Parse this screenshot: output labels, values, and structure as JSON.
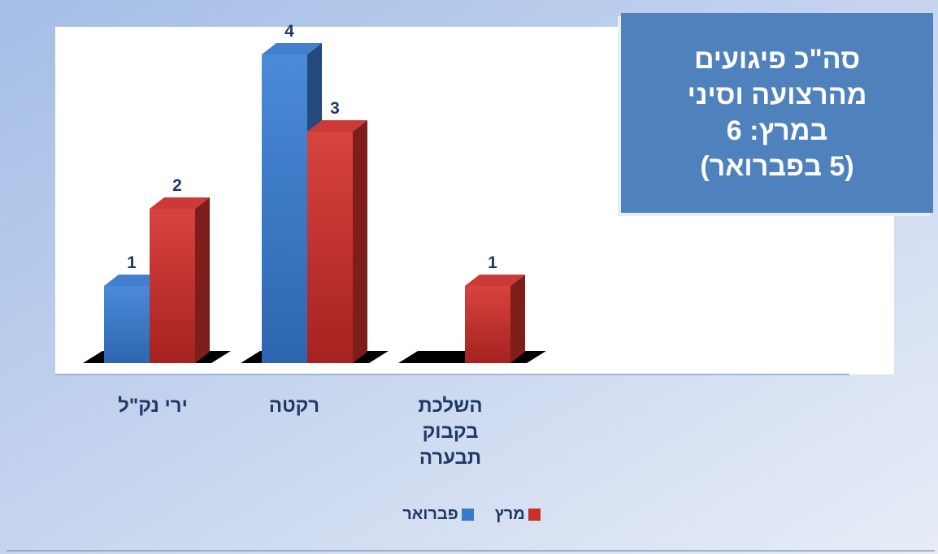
{
  "chart_data": {
    "type": "bar",
    "categories": [
      [
        "ירי נק\"ל"
      ],
      [
        "רקטה"
      ],
      [
        "השלכת",
        "בקבוק",
        "תבערה"
      ]
    ],
    "series": [
      {
        "name": "פברואר",
        "values": [
          1,
          4,
          null
        ],
        "color": "#3a78c9"
      },
      {
        "name": "מרץ",
        "values": [
          2,
          3,
          1
        ],
        "color": "#c9302c"
      }
    ],
    "ylim": [
      0,
      4
    ],
    "grid": false,
    "legend_position": "bottom",
    "data_labels": true,
    "title": [
      "סה\"כ פיגועים",
      "מהרצועה וסיני",
      "במרץ: 6",
      "(5 בפברואר)"
    ]
  },
  "colors": {
    "background_start": "#a8c0e8",
    "background_end": "#e6ecf7",
    "title_box": "#4f81bd",
    "label_text": "#1f3864",
    "data_label_text": "#1f3864"
  }
}
